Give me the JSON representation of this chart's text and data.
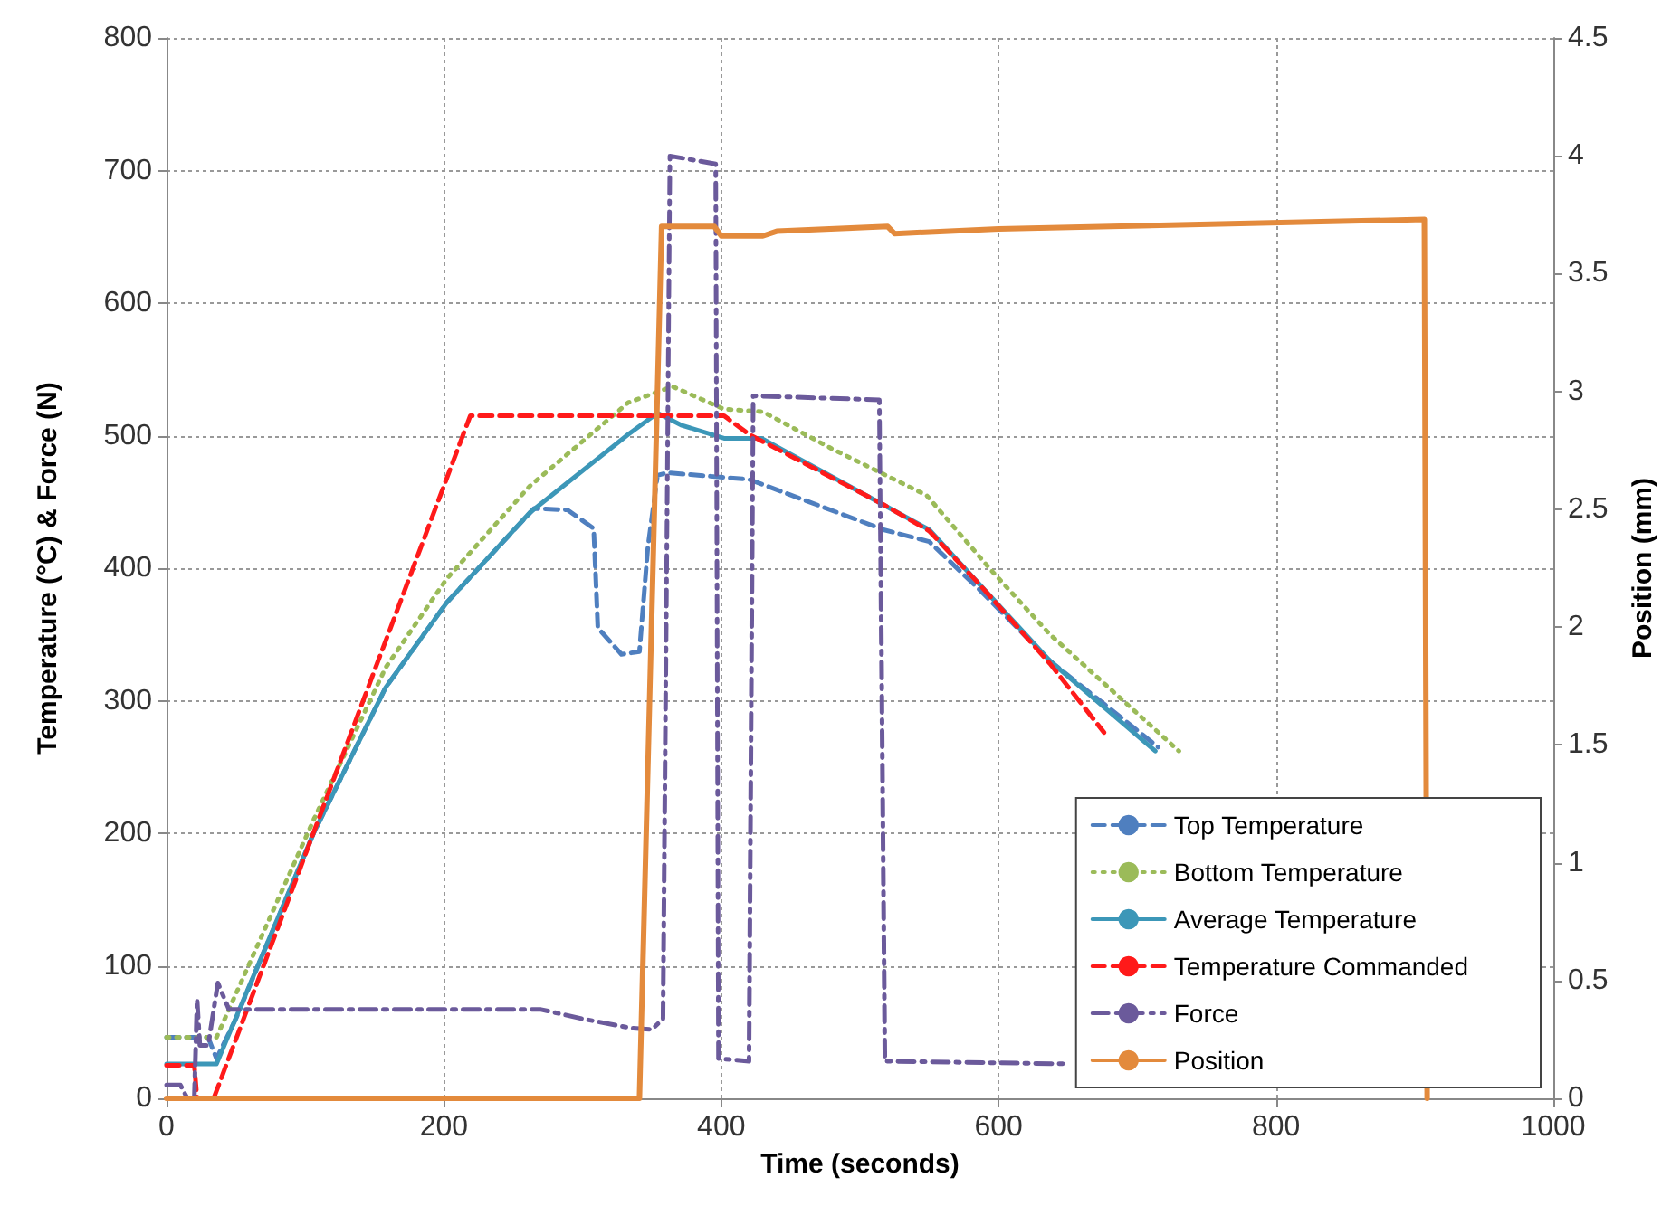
{
  "chart_data": {
    "type": "line",
    "xlabel": "Time (seconds)",
    "ylabel": "Temperature (°C) & Force (N)",
    "y2label": "Position (mm)",
    "xlim": [
      0,
      1000
    ],
    "xticks": [
      0,
      200,
      400,
      600,
      800,
      1000
    ],
    "ylim": [
      0,
      800
    ],
    "yticks": [
      0,
      100,
      200,
      300,
      400,
      500,
      600,
      700,
      800
    ],
    "y2lim": [
      0,
      4.5
    ],
    "y2ticks": [
      0,
      0.5,
      1,
      1.5,
      2,
      2.5,
      3,
      3.5,
      4,
      4.5
    ],
    "grid": true,
    "legend": "bottom right",
    "marker": "none",
    "series": [
      {
        "name": "Top Temperature",
        "color": "#4f7fbf",
        "line_style": "dashed",
        "x": [
          0,
          30,
          36,
          50,
          106,
          158,
          202,
          265,
          289,
          308,
          311,
          328,
          341,
          347,
          354,
          361,
          420,
          517,
          550,
          586,
          637,
          715
        ],
        "values": [
          46,
          46,
          30,
          60,
          200,
          310,
          374,
          445,
          444,
          430,
          355,
          335,
          337,
          415,
          470,
          472,
          467,
          429,
          420,
          384,
          330,
          265
        ]
      },
      {
        "name": "Bottom Temperature",
        "color": "#9bbb59",
        "line_style": "dotted",
        "x": [
          0,
          36,
          106,
          158,
          202,
          262,
          333,
          365,
          402,
          430,
          480,
          548,
          595,
          637,
          730
        ],
        "values": [
          46,
          46,
          210,
          325,
          392,
          462,
          525,
          537,
          520,
          518,
          490,
          455,
          398,
          350,
          262
        ]
      },
      {
        "name": "Average Temperature",
        "color": "#3c97b8",
        "line_style": "solid",
        "x": [
          0,
          36,
          106,
          158,
          202,
          262,
          333,
          354,
          371,
          402,
          429,
          550,
          637,
          713
        ],
        "values": [
          26,
          26,
          200,
          310,
          374,
          442,
          501,
          517,
          508,
          498,
          498,
          429,
          330,
          262
        ]
      },
      {
        "name": "Temperature Commanded",
        "color": "#ff1a1a",
        "line_style": "dashed",
        "x": [
          0,
          20,
          22,
          34,
          219,
          402,
          420,
          517,
          550,
          586,
          637,
          676
        ],
        "values": [
          25,
          25,
          0,
          0,
          515,
          515,
          501,
          448,
          428,
          388,
          328,
          276
        ]
      },
      {
        "name": "Force",
        "color": "#6b5a9b",
        "line_style": "dashdot",
        "x": [
          0,
          10,
          15,
          20,
          22,
          24,
          30,
          37,
          45,
          270,
          300,
          335,
          350,
          358,
          363,
          396,
          398,
          420,
          423,
          514,
          518,
          650
        ],
        "values": [
          10,
          10,
          0,
          0,
          75,
          40,
          40,
          87,
          67,
          67,
          60,
          53,
          52,
          60,
          711,
          705,
          30,
          28,
          530,
          527,
          28,
          26
        ]
      },
      {
        "name": "Position",
        "color": "#e38a3c",
        "line_style": "solid",
        "axis": "y2",
        "x": [
          0,
          341,
          357,
          395,
          400,
          430,
          440,
          520,
          525,
          600,
          907,
          909
        ],
        "values": [
          0,
          0,
          3.7,
          3.7,
          3.66,
          3.66,
          3.68,
          3.7,
          3.67,
          3.69,
          3.73,
          0
        ]
      }
    ]
  }
}
